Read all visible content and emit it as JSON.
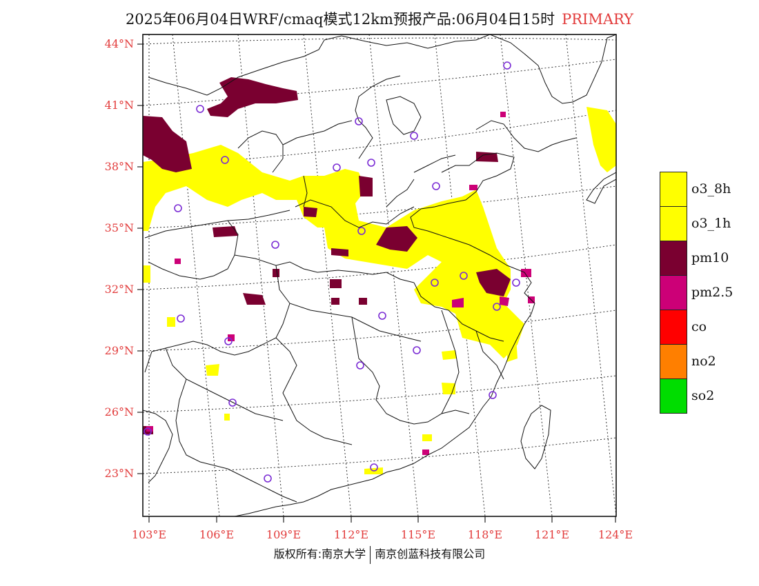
{
  "title": {
    "main": "2025年06月04日WRF/cmaq模式12km预报产品:06月04日15时",
    "tag": "PRIMARY"
  },
  "axes": {
    "lat_labels": [
      "44°N",
      "41°N",
      "38°N",
      "35°N",
      "32°N",
      "29°N",
      "26°N",
      "23°N"
    ],
    "lon_labels": [
      "103°E",
      "106°E",
      "109°E",
      "112°E",
      "115°E",
      "118°E",
      "121°E",
      "124°E"
    ]
  },
  "legend": [
    {
      "label": "o3_8h",
      "color": "#ffff00"
    },
    {
      "label": "o3_1h",
      "color": "#ffff00"
    },
    {
      "label": "pm10",
      "color": "#7a0030"
    },
    {
      "label": "pm2.5",
      "color": "#cc0077"
    },
    {
      "label": "co",
      "color": "#ff0000"
    },
    {
      "label": "no2",
      "color": "#ff7f00"
    },
    {
      "label": "so2",
      "color": "#00dd00"
    }
  ],
  "footer": {
    "left": "版权所有:南京大学",
    "right": "南京创蓝科技有限公司"
  },
  "colors": {
    "accent": "#e23b3b",
    "station_marker": "#7a2bd4"
  }
}
